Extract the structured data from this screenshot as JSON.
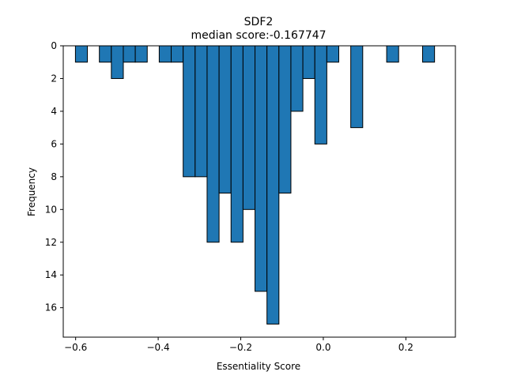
{
  "chart_data": {
    "type": "bar",
    "title": "SDF2",
    "subtitle": "median score:-0.167747",
    "xlabel": "Essentiality Score",
    "ylabel": "Frequency",
    "xlim": [
      -0.63,
      0.32
    ],
    "ylim": [
      17.8,
      0
    ],
    "y_inverted": true,
    "bin_width": 0.029,
    "bar_color": "#1f77b4",
    "edge_color": "#000000",
    "xticks": [
      -0.6,
      -0.4,
      -0.2,
      0.0,
      0.2
    ],
    "xtick_labels": [
      "−0.6",
      "−0.4",
      "−0.2",
      "0.0",
      "0.2"
    ],
    "yticks": [
      0,
      2,
      4,
      6,
      8,
      10,
      12,
      14,
      16
    ],
    "ytick_labels": [
      "0",
      "2",
      "4",
      "6",
      "8",
      "10",
      "12",
      "14",
      "16"
    ],
    "bins": [
      {
        "x": -0.586,
        "count": 1
      },
      {
        "x": -0.528,
        "count": 1
      },
      {
        "x": -0.499,
        "count": 2
      },
      {
        "x": -0.47,
        "count": 1
      },
      {
        "x": -0.441,
        "count": 1
      },
      {
        "x": -0.383,
        "count": 1
      },
      {
        "x": -0.354,
        "count": 1
      },
      {
        "x": -0.325,
        "count": 8
      },
      {
        "x": -0.296,
        "count": 8
      },
      {
        "x": -0.267,
        "count": 12
      },
      {
        "x": -0.238,
        "count": 9
      },
      {
        "x": -0.209,
        "count": 12
      },
      {
        "x": -0.18,
        "count": 10
      },
      {
        "x": -0.151,
        "count": 15
      },
      {
        "x": -0.122,
        "count": 17
      },
      {
        "x": -0.093,
        "count": 9
      },
      {
        "x": -0.064,
        "count": 4
      },
      {
        "x": -0.035,
        "count": 2
      },
      {
        "x": -0.006,
        "count": 6
      },
      {
        "x": 0.023,
        "count": 1
      },
      {
        "x": 0.081,
        "count": 5
      },
      {
        "x": 0.168,
        "count": 1
      },
      {
        "x": 0.255,
        "count": 1
      }
    ],
    "grid": false,
    "legend": "none"
  }
}
